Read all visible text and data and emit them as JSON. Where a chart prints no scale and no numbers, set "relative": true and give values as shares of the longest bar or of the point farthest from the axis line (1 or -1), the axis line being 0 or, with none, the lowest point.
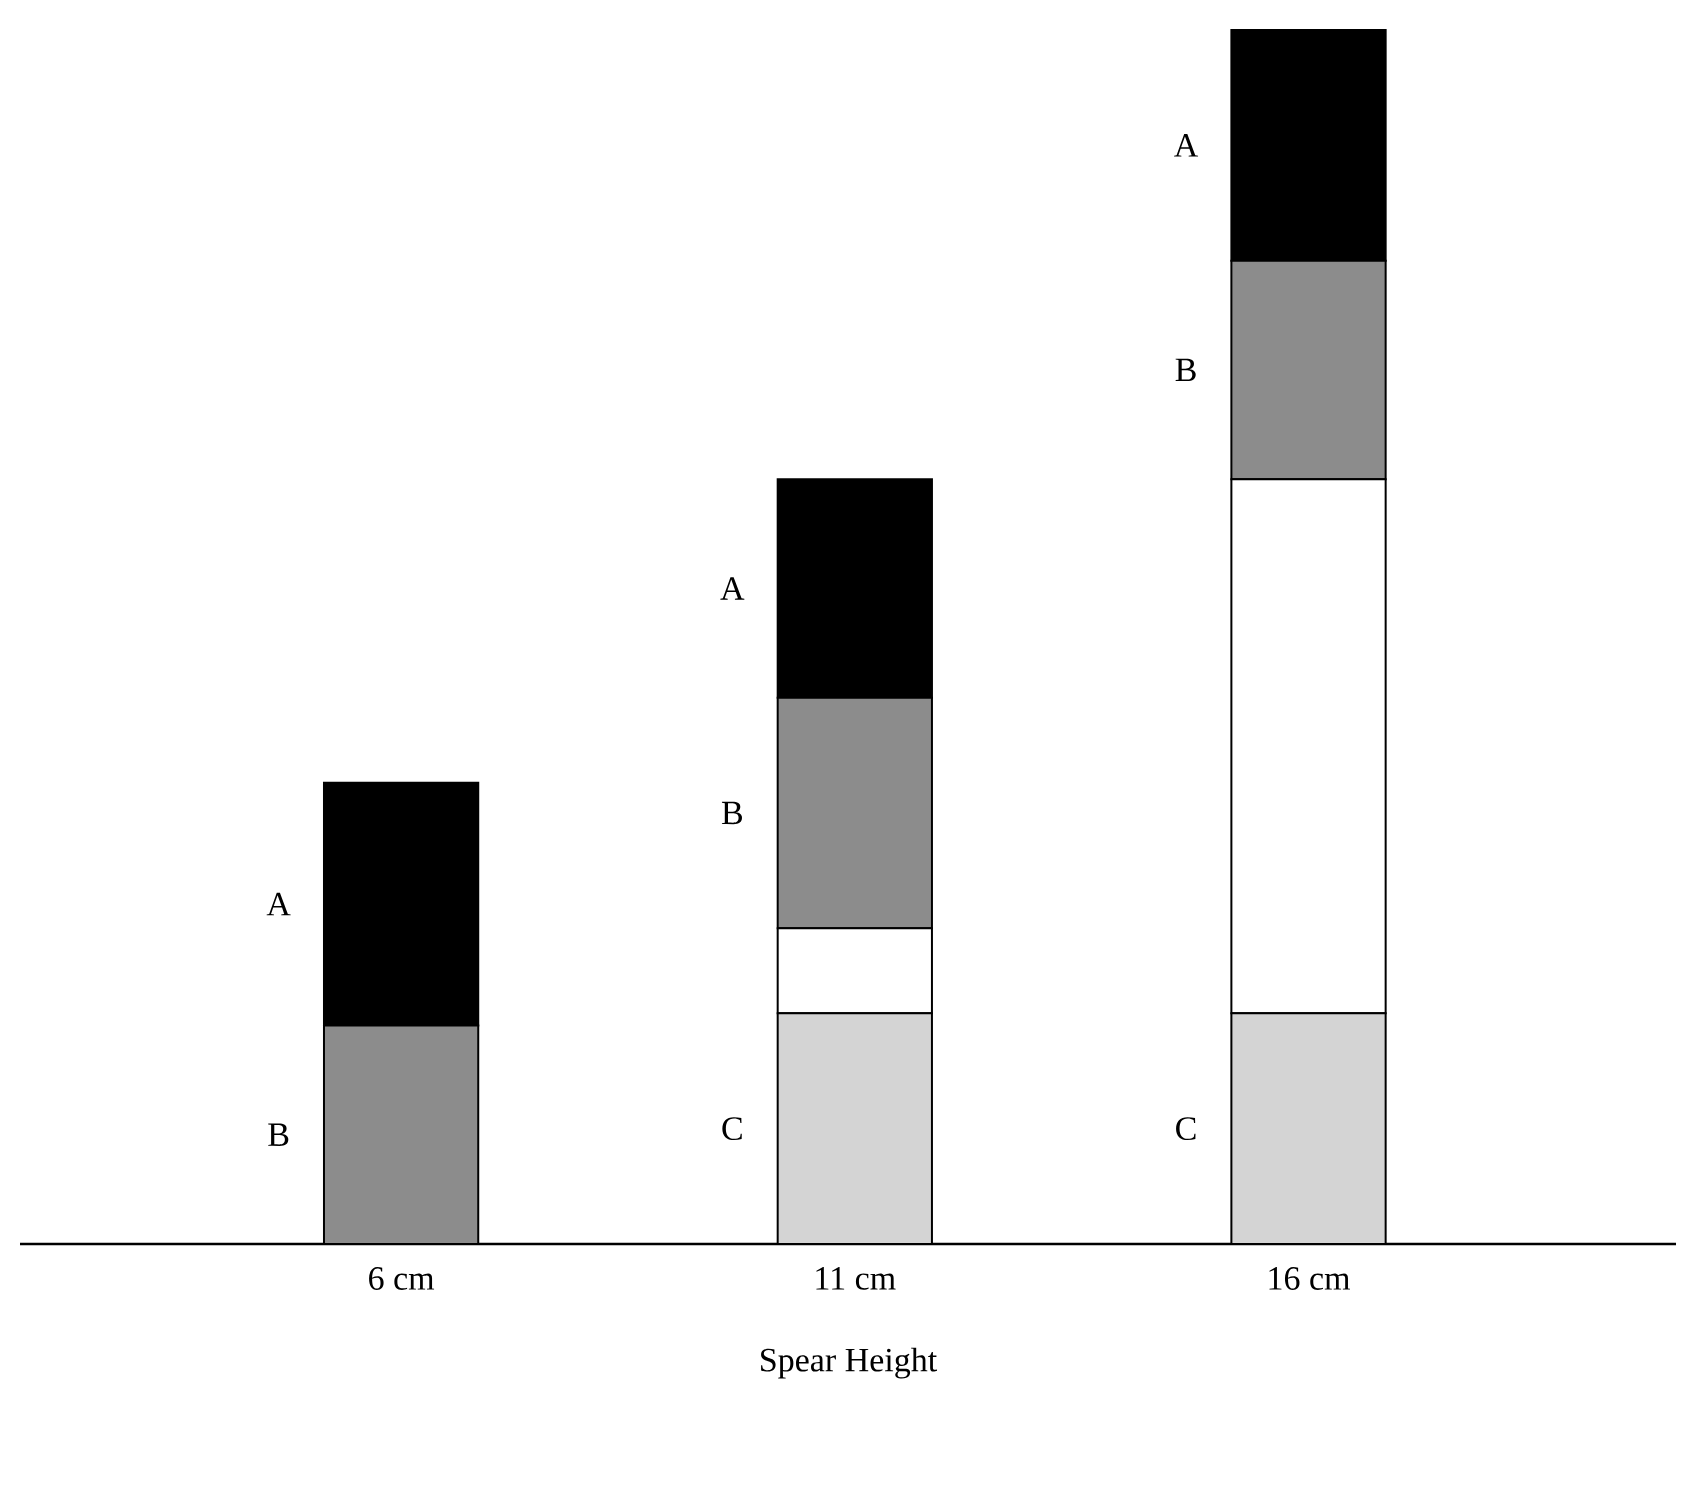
{
  "chart_data": {
    "type": "bar",
    "stacked": true,
    "relative": true,
    "legend": false,
    "categories": [
      "6 cm",
      "11 cm",
      "16 cm"
    ],
    "xlabel": "Spear Height",
    "series": [
      {
        "name": "C",
        "color": "#d4d4d4",
        "values": [
          0,
          0.19,
          0.19
        ]
      },
      {
        "color": "#ffffff",
        "values": [
          0,
          0.07,
          0.44
        ]
      },
      {
        "name": "B",
        "color": "#8c8c8c",
        "values": [
          0.18,
          0.19,
          0.18
        ]
      },
      {
        "name": "A",
        "color": "#000000",
        "values": [
          0.2,
          0.18,
          0.19
        ]
      }
    ]
  }
}
